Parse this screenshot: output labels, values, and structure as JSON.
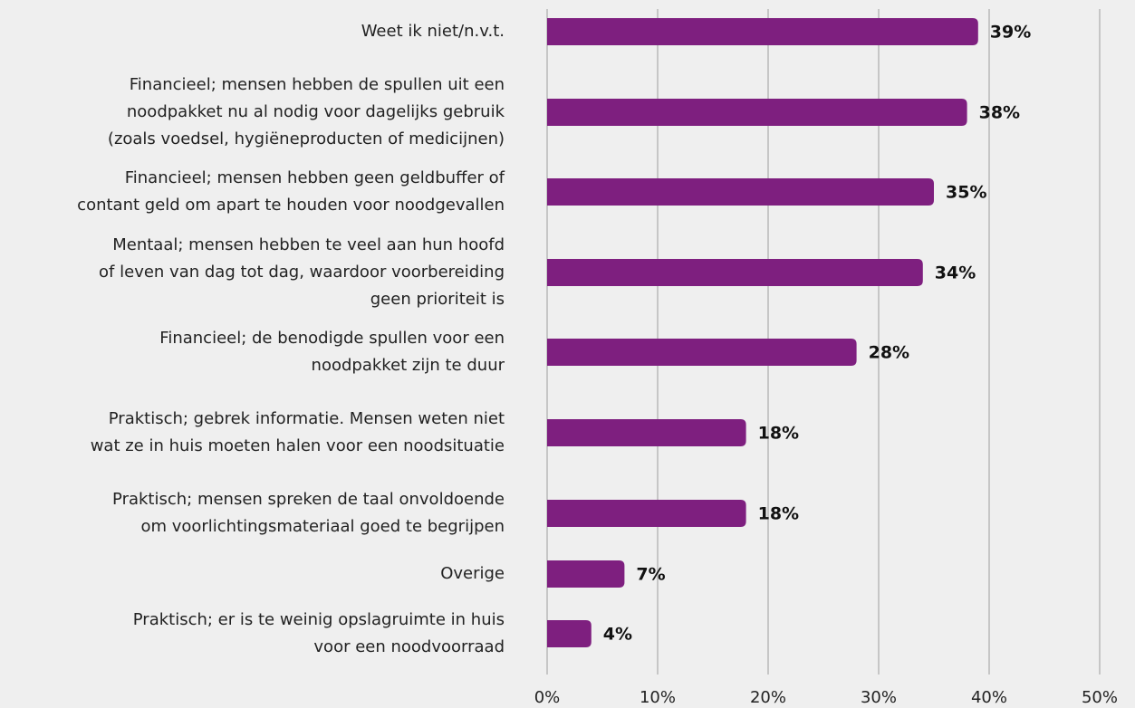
{
  "chart_data": {
    "type": "bar",
    "orientation": "horizontal",
    "categories": [
      [
        "Weet ik niet/n.v.t."
      ],
      [
        "Financieel; mensen hebben de spullen uit een",
        "noodpakket nu al nodig voor dagelijks gebruik",
        "(zoals voedsel, hygiëneproducten of medicijnen)"
      ],
      [
        "Financieel; mensen hebben geen geldbuffer of",
        "contant geld om apart te houden voor noodgevallen"
      ],
      [
        "Mentaal; mensen hebben te veel aan hun hoofd",
        "of leven van dag tot dag, waardoor voorbereiding",
        "geen prioriteit is"
      ],
      [
        "Financieel; de benodigde spullen voor een",
        "noodpakket zijn te duur"
      ],
      [
        "Praktisch; gebrek informatie. Mensen weten niet",
        "wat ze in huis moeten halen voor een noodsituatie"
      ],
      [
        "Praktisch; mensen spreken de taal onvoldoende",
        "om voorlichtingsmateriaal goed te begrijpen"
      ],
      [
        "Overige"
      ],
      [
        "Praktisch; er is te weinig opslagruimte in huis",
        "voor een noodvoorraad"
      ]
    ],
    "values": [
      39,
      38,
      35,
      34,
      28,
      18,
      18,
      7,
      4
    ],
    "value_labels": [
      "39%",
      "38%",
      "35%",
      "34%",
      "28%",
      "18%",
      "18%",
      "7%",
      "4%"
    ],
    "color": "#7e1f7f",
    "xlim": [
      0,
      50
    ],
    "xticks": [
      {
        "value": 0,
        "label": "0%"
      },
      {
        "value": 10,
        "label": "10%"
      },
      {
        "value": 20,
        "label": "20%"
      },
      {
        "value": 30,
        "label": "30%"
      },
      {
        "value": 40,
        "label": "40%"
      },
      {
        "value": 50,
        "label": "50%"
      }
    ],
    "grid": true
  }
}
